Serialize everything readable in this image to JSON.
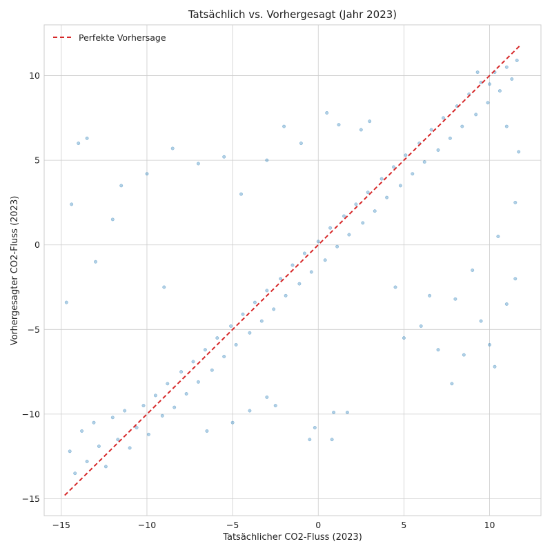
{
  "chart_data": {
    "type": "scatter",
    "title": "Tatsächlich vs. Vorhergesagt (Jahr 2023)",
    "xlabel": "Tatsächlicher CO2-Fluss (2023)",
    "ylabel": "Vorhergesagter CO2-Fluss (2023)",
    "xlim": [
      -16,
      13
    ],
    "ylim": [
      -16,
      13
    ],
    "xticks": [
      -15,
      -10,
      -5,
      0,
      5,
      10
    ],
    "yticks": [
      -15,
      -10,
      -5,
      0,
      5,
      10
    ],
    "grid": true,
    "legend": {
      "position": "top-left",
      "entries": [
        "Perfekte Vorhersage"
      ]
    },
    "reference_line": {
      "name": "Perfekte Vorhersage",
      "x": [
        -14.8,
        11.8
      ],
      "y": [
        -14.8,
        11.8
      ],
      "color": "#d62728",
      "style": "dashed"
    },
    "series": [
      {
        "marker_color": "#1f77b4",
        "marker_alpha": 0.35,
        "description_points": "Dense cloud of roughly 10000 points; majority lie close to the diagonal with spread of about ±2 units, plus scattered outliers across the plot.",
        "points": [
          [
            -14.5,
            -12.2
          ],
          [
            -14.2,
            -13.5
          ],
          [
            -13.8,
            -11.0
          ],
          [
            -13.5,
            -12.8
          ],
          [
            -13.1,
            -10.5
          ],
          [
            -12.8,
            -11.9
          ],
          [
            -12.4,
            -13.1
          ],
          [
            -12.0,
            -10.2
          ],
          [
            -11.7,
            -11.5
          ],
          [
            -11.3,
            -9.8
          ],
          [
            -11.0,
            -12.0
          ],
          [
            -10.6,
            -10.8
          ],
          [
            -10.2,
            -9.5
          ],
          [
            -9.9,
            -11.2
          ],
          [
            -9.5,
            -8.9
          ],
          [
            -9.1,
            -10.1
          ],
          [
            -8.8,
            -8.2
          ],
          [
            -8.4,
            -9.6
          ],
          [
            -8.0,
            -7.5
          ],
          [
            -7.7,
            -8.8
          ],
          [
            -7.3,
            -6.9
          ],
          [
            -7.0,
            -8.1
          ],
          [
            -6.6,
            -6.2
          ],
          [
            -6.2,
            -7.4
          ],
          [
            -5.9,
            -5.5
          ],
          [
            -5.5,
            -6.6
          ],
          [
            -5.1,
            -4.8
          ],
          [
            -4.8,
            -5.9
          ],
          [
            -4.4,
            -4.1
          ],
          [
            -4.0,
            -5.2
          ],
          [
            -3.7,
            -3.4
          ],
          [
            -3.3,
            -4.5
          ],
          [
            -3.0,
            -2.7
          ],
          [
            -2.6,
            -3.8
          ],
          [
            -2.2,
            -2.0
          ],
          [
            -1.9,
            -3.0
          ],
          [
            -1.5,
            -1.2
          ],
          [
            -1.1,
            -2.3
          ],
          [
            -0.8,
            -0.5
          ],
          [
            -0.4,
            -1.6
          ],
          [
            0.0,
            0.2
          ],
          [
            0.4,
            -0.9
          ],
          [
            0.7,
            1.0
          ],
          [
            1.1,
            -0.1
          ],
          [
            1.5,
            1.7
          ],
          [
            1.8,
            0.6
          ],
          [
            2.2,
            2.4
          ],
          [
            2.6,
            1.3
          ],
          [
            2.9,
            3.1
          ],
          [
            3.3,
            2.0
          ],
          [
            3.7,
            3.9
          ],
          [
            4.0,
            2.8
          ],
          [
            4.4,
            4.6
          ],
          [
            4.8,
            3.5
          ],
          [
            5.1,
            5.3
          ],
          [
            5.5,
            4.2
          ],
          [
            5.9,
            6.0
          ],
          [
            6.2,
            4.9
          ],
          [
            6.6,
            6.8
          ],
          [
            7.0,
            5.6
          ],
          [
            7.3,
            7.5
          ],
          [
            7.7,
            6.3
          ],
          [
            8.1,
            8.2
          ],
          [
            8.4,
            7.0
          ],
          [
            8.8,
            8.9
          ],
          [
            9.2,
            7.7
          ],
          [
            9.5,
            9.6
          ],
          [
            9.9,
            8.4
          ],
          [
            10.3,
            10.2
          ],
          [
            10.6,
            9.1
          ],
          [
            11.0,
            10.5
          ],
          [
            11.3,
            9.8
          ],
          [
            11.6,
            10.9
          ],
          [
            -14.0,
            6.0
          ],
          [
            -13.5,
            6.3
          ],
          [
            -11.5,
            3.5
          ],
          [
            -10.0,
            4.2
          ],
          [
            -8.5,
            5.7
          ],
          [
            -7.0,
            4.8
          ],
          [
            -5.5,
            5.2
          ],
          [
            -4.5,
            3.0
          ],
          [
            -3.0,
            5.0
          ],
          [
            -2.0,
            7.0
          ],
          [
            -1.0,
            6.0
          ],
          [
            0.5,
            7.8
          ],
          [
            1.2,
            7.1
          ],
          [
            2.5,
            6.8
          ],
          [
            3.0,
            7.3
          ],
          [
            5.0,
            -5.5
          ],
          [
            6.0,
            -4.8
          ],
          [
            7.0,
            -6.2
          ],
          [
            7.8,
            -8.2
          ],
          [
            8.5,
            -6.5
          ],
          [
            9.5,
            -4.5
          ],
          [
            10.0,
            -5.9
          ],
          [
            10.3,
            -7.2
          ],
          [
            11.0,
            -3.5
          ],
          [
            11.5,
            -2.0
          ],
          [
            -0.5,
            -11.5
          ],
          [
            -0.2,
            -10.8
          ],
          [
            0.8,
            -11.5
          ],
          [
            0.9,
            -9.9
          ],
          [
            1.7,
            -9.9
          ],
          [
            -14.7,
            -3.4
          ],
          [
            -14.4,
            2.4
          ],
          [
            -13.0,
            -1.0
          ],
          [
            -12.0,
            1.5
          ],
          [
            -9.0,
            -2.5
          ],
          [
            -6.5,
            -11.0
          ],
          [
            -5.0,
            -10.5
          ],
          [
            -4.0,
            -9.8
          ],
          [
            -3.0,
            -9.0
          ],
          [
            -2.5,
            -9.5
          ],
          [
            4.5,
            -2.5
          ],
          [
            6.5,
            -3.0
          ],
          [
            8.0,
            -3.2
          ],
          [
            9.0,
            -1.5
          ],
          [
            10.5,
            0.5
          ],
          [
            11.5,
            2.5
          ],
          [
            11.7,
            5.5
          ],
          [
            11.0,
            7.0
          ],
          [
            10.0,
            9.5
          ],
          [
            9.3,
            10.2
          ]
        ]
      }
    ]
  }
}
